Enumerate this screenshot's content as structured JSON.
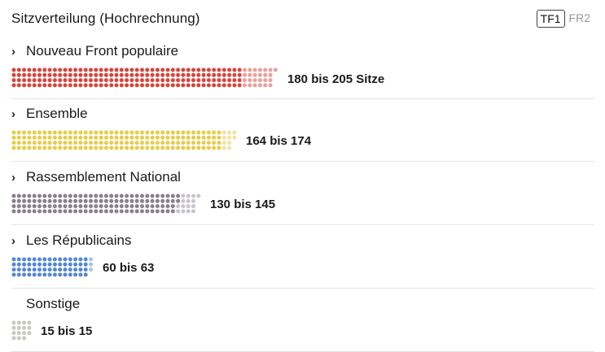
{
  "header": {
    "title": "Sitzverteilung  (Hochrechnung)",
    "sources": [
      {
        "label": "TF1",
        "active": true
      },
      {
        "label": "FR2",
        "active": false
      }
    ]
  },
  "parties": [
    {
      "name": "Nouveau Front populaire",
      "range_label": "180 bis 205 Sitze",
      "min": 180,
      "max": 205,
      "color": "#d9443b",
      "light_color": "#eaa09b",
      "expandable": true
    },
    {
      "name": "Ensemble",
      "range_label": "164 bis 174",
      "min": 164,
      "max": 174,
      "color": "#e6cc4a",
      "light_color": "#f1e3a0",
      "expandable": true
    },
    {
      "name": "Rassemblement National",
      "range_label": "130 bis 145",
      "min": 130,
      "max": 145,
      "color": "#8a7f8e",
      "light_color": "#c9c4cc",
      "expandable": true
    },
    {
      "name": "Les Républicains",
      "range_label": "60 bis 63",
      "min": 60,
      "max": 63,
      "color": "#5588d2",
      "light_color": "#a5c2ec",
      "expandable": true
    },
    {
      "name": "Sonstige",
      "range_label": "15 bis 15",
      "min": 15,
      "max": 15,
      "color": "#c9c9c0",
      "light_color": "#e3e3dc",
      "expandable": false
    }
  ]
}
